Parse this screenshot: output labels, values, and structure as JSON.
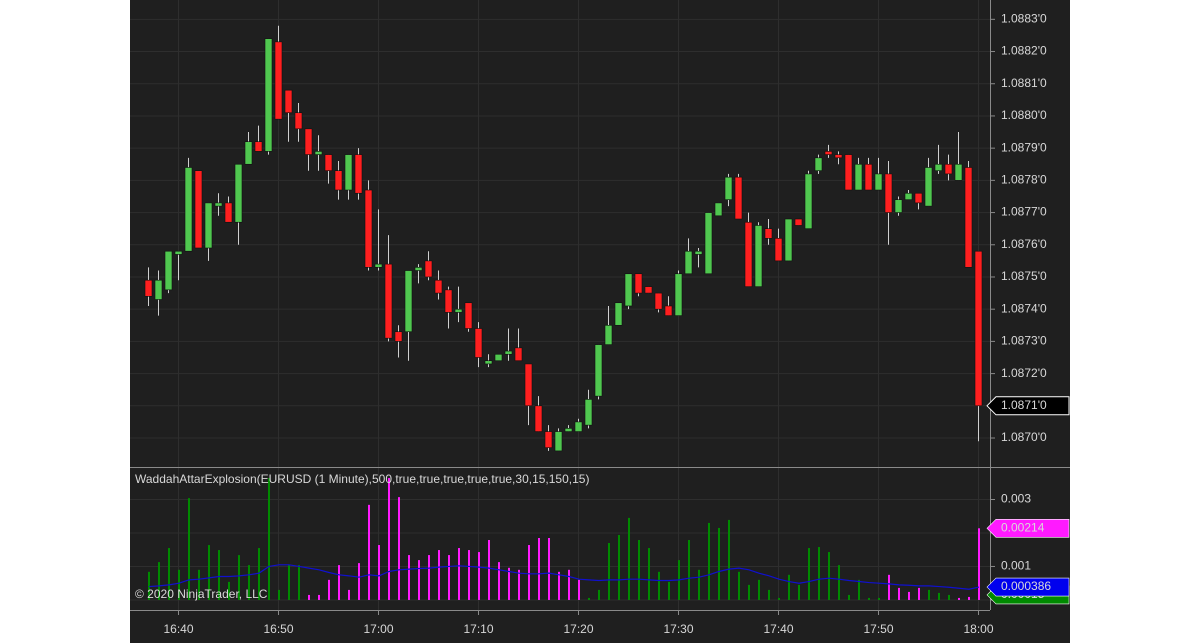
{
  "chart_data": [
    {
      "type": "candlestick",
      "up_color": "#4fc74f",
      "down_color": "#ff1f1f",
      "outline_color": "#101010",
      "ylim": [
        1.08691,
        1.08836
      ],
      "yticks": [
        {
          "value": 1.087,
          "label": "1.0870'0"
        },
        {
          "value": 1.0871,
          "label": "1.0871'0"
        },
        {
          "value": 1.0872,
          "label": "1.0872'0"
        },
        {
          "value": 1.0873,
          "label": "1.0873'0"
        },
        {
          "value": 1.0874,
          "label": "1.0874'0"
        },
        {
          "value": 1.0875,
          "label": "1.0875'0"
        },
        {
          "value": 1.0876,
          "label": "1.0876'0"
        },
        {
          "value": 1.0877,
          "label": "1.0877'0"
        },
        {
          "value": 1.0878,
          "label": "1.0878'0"
        },
        {
          "value": 1.0879,
          "label": "1.0879'0"
        },
        {
          "value": 1.088,
          "label": "1.0880'0"
        },
        {
          "value": 1.0881,
          "label": "1.0881'0"
        },
        {
          "value": 1.0882,
          "label": "1.0882'0"
        },
        {
          "value": 1.0883,
          "label": "1.0883'0"
        }
      ],
      "grid": true,
      "last_price": {
        "value": 1.0871,
        "label": "1.0871'0"
      },
      "open": [
        1.08749,
        1.08743,
        1.08746,
        1.08757,
        1.08758,
        1.08783,
        1.08759,
        1.08772,
        1.08773,
        1.08767,
        1.08785,
        1.08792,
        1.08789,
        1.08823,
        1.08808,
        1.08801,
        1.08796,
        1.08788,
        1.08788,
        1.08783,
        1.08777,
        1.08788,
        1.08777,
        1.08753,
        1.08754,
        1.08733,
        1.08733,
        1.08752,
        1.08755,
        1.08749,
        1.08746,
        1.08739,
        1.08742,
        1.08734,
        1.08723,
        1.08724,
        1.08726,
        1.08728,
        1.08723,
        1.0871,
        1.08702,
        1.08696,
        1.08702,
        1.08702,
        1.08704,
        1.08713,
        1.08729,
        1.08735,
        1.08741,
        1.08751,
        1.08747,
        1.08745,
        1.08741,
        1.08738,
        1.08751,
        1.08757,
        1.08751,
        1.08769,
        1.08774,
        1.08781,
        1.08767,
        1.08747,
        1.08765,
        1.08762,
        1.08755,
        1.08768,
        1.08765,
        1.08783,
        1.08789,
        1.08788,
        1.08788,
        1.08777,
        1.08785,
        1.08777,
        1.08782,
        1.0877,
        1.08774,
        1.08776,
        1.08772,
        1.08783,
        1.08785,
        1.0878,
        1.08784,
        1.08758
      ],
      "high": [
        1.08753,
        1.08752,
        1.08758,
        1.08758,
        1.08787,
        1.08783,
        1.08773,
        1.08776,
        1.08775,
        1.08785,
        1.08795,
        1.08797,
        1.08824,
        1.08828,
        1.08808,
        1.08804,
        1.08796,
        1.08794,
        1.08788,
        1.08786,
        1.08788,
        1.0879,
        1.0878,
        1.08771,
        1.08763,
        1.08735,
        1.08752,
        1.08754,
        1.08758,
        1.08752,
        1.08747,
        1.08747,
        1.08742,
        1.08736,
        1.08726,
        1.08726,
        1.08734,
        1.08734,
        1.08723,
        1.08713,
        1.08704,
        1.08703,
        1.08704,
        1.08706,
        1.08715,
        1.08729,
        1.08741,
        1.08742,
        1.08751,
        1.08751,
        1.08747,
        1.08745,
        1.08744,
        1.08752,
        1.08762,
        1.08759,
        1.0877,
        1.08773,
        1.08782,
        1.08782,
        1.0877,
        1.08767,
        1.08768,
        1.08765,
        1.08768,
        1.08768,
        1.08783,
        1.08788,
        1.08791,
        1.08789,
        1.08788,
        1.08787,
        1.08787,
        1.08787,
        1.08786,
        1.08775,
        1.08777,
        1.08776,
        1.08787,
        1.08791,
        1.08788,
        1.08795,
        1.08786,
        1.08758
      ],
      "low": [
        1.08741,
        1.08738,
        1.08745,
        1.08749,
        1.08758,
        1.08759,
        1.08755,
        1.08769,
        1.08767,
        1.0876,
        1.08785,
        1.08789,
        1.08788,
        1.08799,
        1.08792,
        1.08792,
        1.08783,
        1.08783,
        1.08779,
        1.08774,
        1.08774,
        1.08774,
        1.08752,
        1.08752,
        1.0873,
        1.08725,
        1.08724,
        1.08748,
        1.08749,
        1.08743,
        1.08734,
        1.08736,
        1.08733,
        1.08722,
        1.08722,
        1.08724,
        1.08724,
        1.08724,
        1.08704,
        1.08702,
        1.08696,
        1.08696,
        1.08702,
        1.08702,
        1.08703,
        1.08712,
        1.08729,
        1.08735,
        1.0874,
        1.08744,
        1.08745,
        1.08739,
        1.08738,
        1.08738,
        1.08751,
        1.08753,
        1.08751,
        1.08769,
        1.08772,
        1.08768,
        1.08747,
        1.08747,
        1.0876,
        1.08755,
        1.08755,
        1.08766,
        1.08765,
        1.08782,
        1.08787,
        1.08785,
        1.08777,
        1.08777,
        1.08777,
        1.08777,
        1.0876,
        1.08769,
        1.08774,
        1.08771,
        1.08772,
        1.08782,
        1.0878,
        1.0878,
        1.08753,
        1.08699
      ],
      "close": [
        1.08744,
        1.08749,
        1.08758,
        1.08758,
        1.08784,
        1.08759,
        1.08773,
        1.08773,
        1.08767,
        1.08785,
        1.08792,
        1.08789,
        1.08824,
        1.08799,
        1.08801,
        1.08796,
        1.08788,
        1.08789,
        1.08783,
        1.08777,
        1.08788,
        1.08776,
        1.08753,
        1.08754,
        1.08731,
        1.0873,
        1.08752,
        1.08753,
        1.0875,
        1.08745,
        1.08739,
        1.0874,
        1.08734,
        1.08725,
        1.08724,
        1.08726,
        1.08727,
        1.08724,
        1.0871,
        1.08702,
        1.08697,
        1.08702,
        1.08703,
        1.08705,
        1.08712,
        1.08729,
        1.08735,
        1.08742,
        1.08751,
        1.08745,
        1.08745,
        1.0874,
        1.08738,
        1.08751,
        1.08758,
        1.08758,
        1.0877,
        1.08773,
        1.08781,
        1.08768,
        1.08747,
        1.08766,
        1.08762,
        1.08755,
        1.08768,
        1.08766,
        1.08782,
        1.08787,
        1.08788,
        1.08787,
        1.08777,
        1.08785,
        1.08777,
        1.08782,
        1.0877,
        1.08774,
        1.08776,
        1.08773,
        1.08784,
        1.08785,
        1.08782,
        1.08785,
        1.08753,
        1.0871
      ]
    },
    {
      "type": "bar",
      "title": "WaddahAttarExplosion(EURUSD (1 Minute),500,true,true,true,true,true,30,15,150,15)",
      "annotation": "© 2020 NinjaTrader, LLC",
      "ylim": [
        -0.0003,
        0.00397
      ],
      "yticks": [
        0,
        0.001,
        0.002,
        0.003
      ],
      "grid": true,
      "categories": [
        null,
        null,
        null,
        "16:40",
        null,
        null,
        null,
        null,
        null,
        null,
        null,
        null,
        null,
        "16:50",
        null,
        null,
        null,
        null,
        null,
        null,
        null,
        null,
        null,
        "17:00",
        null,
        null,
        null,
        null,
        null,
        null,
        null,
        null,
        null,
        "17:10",
        null,
        null,
        null,
        null,
        null,
        null,
        null,
        null,
        null,
        "17:20",
        null,
        null,
        null,
        null,
        null,
        null,
        null,
        null,
        null,
        "17:30",
        null,
        null,
        null,
        null,
        null,
        null,
        null,
        null,
        null,
        "17:40",
        null,
        null,
        null,
        null,
        null,
        null,
        null,
        null,
        null,
        "17:50",
        null,
        null,
        null,
        null,
        null,
        null,
        null,
        null,
        null,
        "18:00"
      ],
      "series": [
        {
          "type": "bar",
          "color": "#008a00",
          "values": [
            0.00084,
            0.00113,
            0.00155,
            0.0009,
            0.00304,
            0.0009,
            0.00164,
            0.00149,
            0.00054,
            0.00134,
            0.00104,
            0.00155,
            0.00364,
            0.0003,
            0.00104,
            0.00104,
            null,
            null,
            null,
            null,
            null,
            null,
            null,
            null,
            null,
            null,
            null,
            null,
            null,
            null,
            null,
            null,
            null,
            null,
            null,
            null,
            null,
            null,
            null,
            null,
            null,
            null,
            null,
            null,
            6e-05,
            0.0003,
            0.0017,
            0.00194,
            0.00245,
            0.00179,
            0.00155,
            0.00084,
            0.00054,
            0.00119,
            0.00179,
            0.0009,
            0.0023,
            0.00215,
            0.00239,
            0.00084,
            0.00045,
            0.0006,
            0.0003,
            6e-05,
            0.00075,
            0.00045,
            0.00155,
            0.00158,
            0.00143,
            0.00104,
            0.00015,
            0.0006,
            6e-05,
            6e-05,
            null,
            null,
            null,
            null,
            0.0003,
            0.00021,
            0.00015,
            null,
            null,
            null
          ]
        },
        {
          "type": "bar",
          "color": "#ff1aff",
          "values": [
            null,
            null,
            null,
            null,
            null,
            null,
            null,
            null,
            null,
            null,
            null,
            null,
            null,
            null,
            null,
            null,
            0.00015,
            0.00015,
            0.0006,
            0.00104,
            0.0003,
            0.0011,
            0.00284,
            0.00164,
            0.00364,
            0.00307,
            0.00134,
            0.00119,
            0.00134,
            0.00149,
            0.00134,
            0.00155,
            0.00149,
            0.00143,
            0.00179,
            0.00113,
            0.00096,
            0.0009,
            0.00164,
            0.00185,
            0.00185,
            0.00084,
            0.0009,
            0.0006,
            null,
            null,
            null,
            null,
            null,
            null,
            null,
            null,
            null,
            null,
            null,
            null,
            null,
            null,
            null,
            null,
            null,
            null,
            null,
            null,
            null,
            null,
            null,
            null,
            null,
            null,
            null,
            null,
            null,
            null,
            0.00075,
            0.00036,
            0.00024,
            0.00036,
            null,
            null,
            null,
            6e-05,
            9e-05,
            0.00214
          ]
        },
        {
          "type": "line",
          "color": "#1010d0",
          "values": [
            0.0004,
            0.00042,
            0.00045,
            0.0005,
            0.0006,
            0.00062,
            0.00066,
            0.0007,
            0.0007,
            0.00072,
            0.00075,
            0.0008,
            0.001,
            0.00105,
            0.00105,
            0.001,
            0.00095,
            0.0009,
            0.00082,
            0.00075,
            0.00072,
            0.00068,
            0.00075,
            0.00072,
            0.00085,
            0.0009,
            0.00092,
            0.00094,
            0.00095,
            0.00098,
            0.001,
            0.00102,
            0.001,
            0.00098,
            0.00095,
            0.0009,
            0.00085,
            0.0008,
            0.00078,
            0.00078,
            0.0008,
            0.00075,
            0.0007,
            0.00062,
            0.0006,
            0.00058,
            0.0006,
            0.0006,
            0.00062,
            0.00062,
            0.0006,
            0.00058,
            0.00058,
            0.0006,
            0.00065,
            0.00068,
            0.00075,
            0.00085,
            0.00092,
            0.00095,
            0.0009,
            0.0008,
            0.00072,
            0.00062,
            0.00055,
            0.0005,
            0.00055,
            0.00062,
            0.00065,
            0.00062,
            0.00058,
            0.00055,
            0.00052,
            0.0005,
            0.00048,
            0.00045,
            0.00044,
            0.00042,
            0.00042,
            0.0004,
            0.00038,
            0.00035,
            0.00032,
            0.000386
          ]
        }
      ]
    }
  ]
}
